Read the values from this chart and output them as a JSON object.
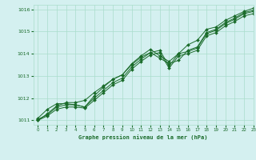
{
  "title": "Graphe pression niveau de la mer (hPa)",
  "bg_color": "#d4f0f0",
  "grid_color": "#aaddcc",
  "line_color": "#1a6b2a",
  "marker_color": "#1a6b2a",
  "xlim": [
    -0.5,
    23
  ],
  "ylim": [
    1010.8,
    1016.2
  ],
  "xticks": [
    0,
    1,
    2,
    3,
    4,
    5,
    6,
    7,
    8,
    9,
    10,
    11,
    12,
    13,
    14,
    15,
    16,
    17,
    18,
    19,
    20,
    21,
    22,
    23
  ],
  "yticks": [
    1011,
    1012,
    1013,
    1014,
    1015,
    1016
  ],
  "series": [
    [
      1011.1,
      1011.5,
      1011.75,
      1011.75,
      1011.7,
      1011.6,
      1012.1,
      1012.5,
      1012.85,
      1013.05,
      1013.55,
      1013.9,
      1014.2,
      1013.9,
      1013.65,
      1014.0,
      1014.4,
      1014.6,
      1015.1,
      1015.2,
      1015.5,
      1015.7,
      1015.9,
      1016.05
    ],
    [
      1011.0,
      1011.3,
      1011.65,
      1011.8,
      1011.8,
      1011.9,
      1012.25,
      1012.55,
      1012.85,
      1013.05,
      1013.5,
      1013.85,
      1014.05,
      1013.8,
      1013.55,
      1013.7,
      1014.15,
      1014.3,
      1014.95,
      1015.1,
      1015.4,
      1015.6,
      1015.85,
      1015.95
    ],
    [
      1011.05,
      1011.25,
      1011.6,
      1011.7,
      1011.7,
      1011.6,
      1012.0,
      1012.35,
      1012.7,
      1012.9,
      1013.4,
      1013.75,
      1014.05,
      1014.15,
      1013.45,
      1014.0,
      1014.1,
      1014.25,
      1014.9,
      1015.05,
      1015.35,
      1015.55,
      1015.8,
      1015.9
    ],
    [
      1011.0,
      1011.2,
      1011.5,
      1011.6,
      1011.6,
      1011.55,
      1011.9,
      1012.25,
      1012.6,
      1012.8,
      1013.3,
      1013.65,
      1013.95,
      1014.05,
      1013.35,
      1013.9,
      1014.0,
      1014.15,
      1014.8,
      1014.95,
      1015.25,
      1015.45,
      1015.7,
      1015.8
    ]
  ]
}
